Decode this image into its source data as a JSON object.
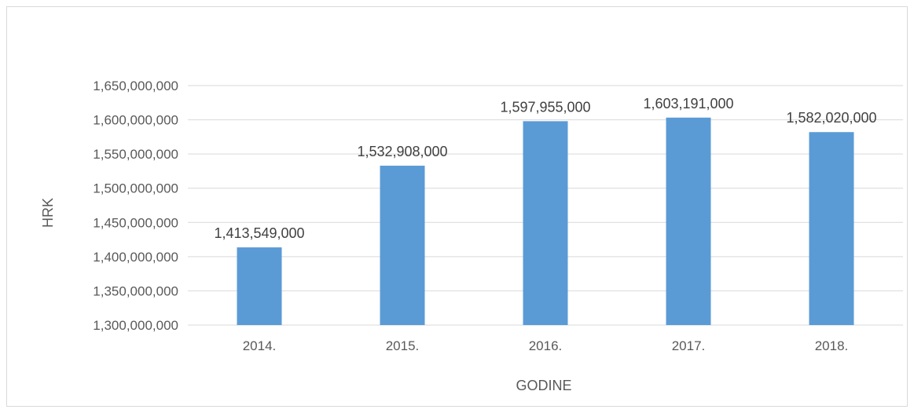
{
  "chart_data": {
    "type": "bar",
    "title": "",
    "xlabel": "GODINE",
    "ylabel": "HRK",
    "categories": [
      "2014.",
      "2015.",
      "2016.",
      "2017.",
      "2018."
    ],
    "values": [
      1413549000,
      1532908000,
      1597955000,
      1603191000,
      1582020000
    ],
    "value_labels": [
      "1,413,549,000",
      "1,532,908,000",
      "1,597,955,000",
      "1,603,191,000",
      "1,582,020,000"
    ],
    "ylim": [
      1300000000,
      1650000000
    ],
    "yticks": [
      1300000000,
      1350000000,
      1400000000,
      1450000000,
      1500000000,
      1550000000,
      1600000000,
      1650000000
    ],
    "ytick_labels": [
      "1,300,000,000",
      "1,350,000,000",
      "1,400,000,000",
      "1,450,000,000",
      "1,500,000,000",
      "1,550,000,000",
      "1,600,000,000",
      "1,650,000,000"
    ],
    "grid": true,
    "legend": "none",
    "bar_color": "#5b9bd5",
    "grid_color": "#d9d9d9"
  }
}
